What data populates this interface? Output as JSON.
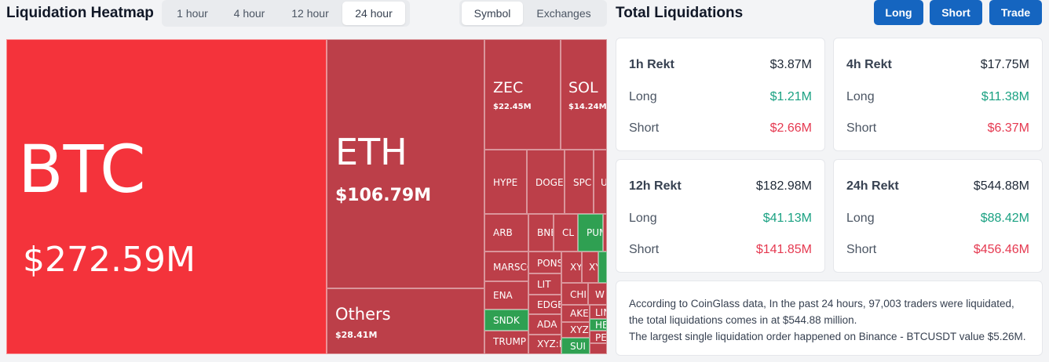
{
  "header": {
    "title": "Liquidation Heatmap",
    "time_tabs": [
      "1 hour",
      "4 hour",
      "12 hour",
      "24 hour"
    ],
    "active_time_tab": "24 hour",
    "view_tabs": [
      "Symbol",
      "Exchanges"
    ],
    "active_view_tab": "Symbol"
  },
  "total": {
    "title": "Total Liquidations",
    "buttons": {
      "long": "Long",
      "short": "Short",
      "trade": "Trade"
    }
  },
  "heatmap": {
    "btc": {
      "symbol": "BTC",
      "value": "$272.59M"
    },
    "eth": {
      "symbol": "ETH",
      "value": "$106.79M"
    },
    "others": {
      "symbol": "Others",
      "value": "$28.41M"
    },
    "zec": {
      "symbol": "ZEC",
      "value": "$22.45M"
    },
    "sol": {
      "symbol": "SOL",
      "value": "$14.24M"
    },
    "small": {
      "hype": "HYPE",
      "doge": "DOGE",
      "spc": "SPC",
      "u": "U",
      "arb": "ARB",
      "bnb": "BNE",
      "cl": "CL",
      "pump": "PUM",
      "marsc": "MARSCO",
      "pons": "PONS",
      "xy1": "XY",
      "xy2": "XY",
      "lit": "LIT",
      "ena": "ENA",
      "chi": "CHI",
      "w": "W",
      "edge": "EDGE",
      "ake": "AKE",
      "lin": "LIN",
      "sndk": "SNDK",
      "ada": "ADA",
      "xyz1": "XYZ",
      "he": "HE",
      "pe": "PE",
      "trump": "TRUMP",
      "xyz2": "XYZ:M",
      "sui": "SUI"
    },
    "colors": {
      "bright_red": "#f4333b",
      "red": "#bc3f49",
      "green": "#2fa052"
    }
  },
  "cards": [
    {
      "title": "1h Rekt",
      "total": "$3.87M",
      "long_label": "Long",
      "long": "$1.21M",
      "short_label": "Short",
      "short": "$2.66M"
    },
    {
      "title": "4h Rekt",
      "total": "$17.75M",
      "long_label": "Long",
      "long": "$11.38M",
      "short_label": "Short",
      "short": "$6.37M"
    },
    {
      "title": "12h Rekt",
      "total": "$182.98M",
      "long_label": "Long",
      "long": "$41.13M",
      "short_label": "Short",
      "short": "$141.85M"
    },
    {
      "title": "24h Rekt",
      "total": "$544.88M",
      "long_label": "Long",
      "long": "$88.42M",
      "short_label": "Short",
      "short": "$456.46M"
    }
  ],
  "info": {
    "line1": "According to CoinGlass data, In the past 24 hours, 97,003 traders were liquidated,",
    "line2": "the total liquidations comes in at $544.88 million.",
    "line3": "The largest single liquidation order happened on Binance - BTCUSDT value $5.26M."
  }
}
